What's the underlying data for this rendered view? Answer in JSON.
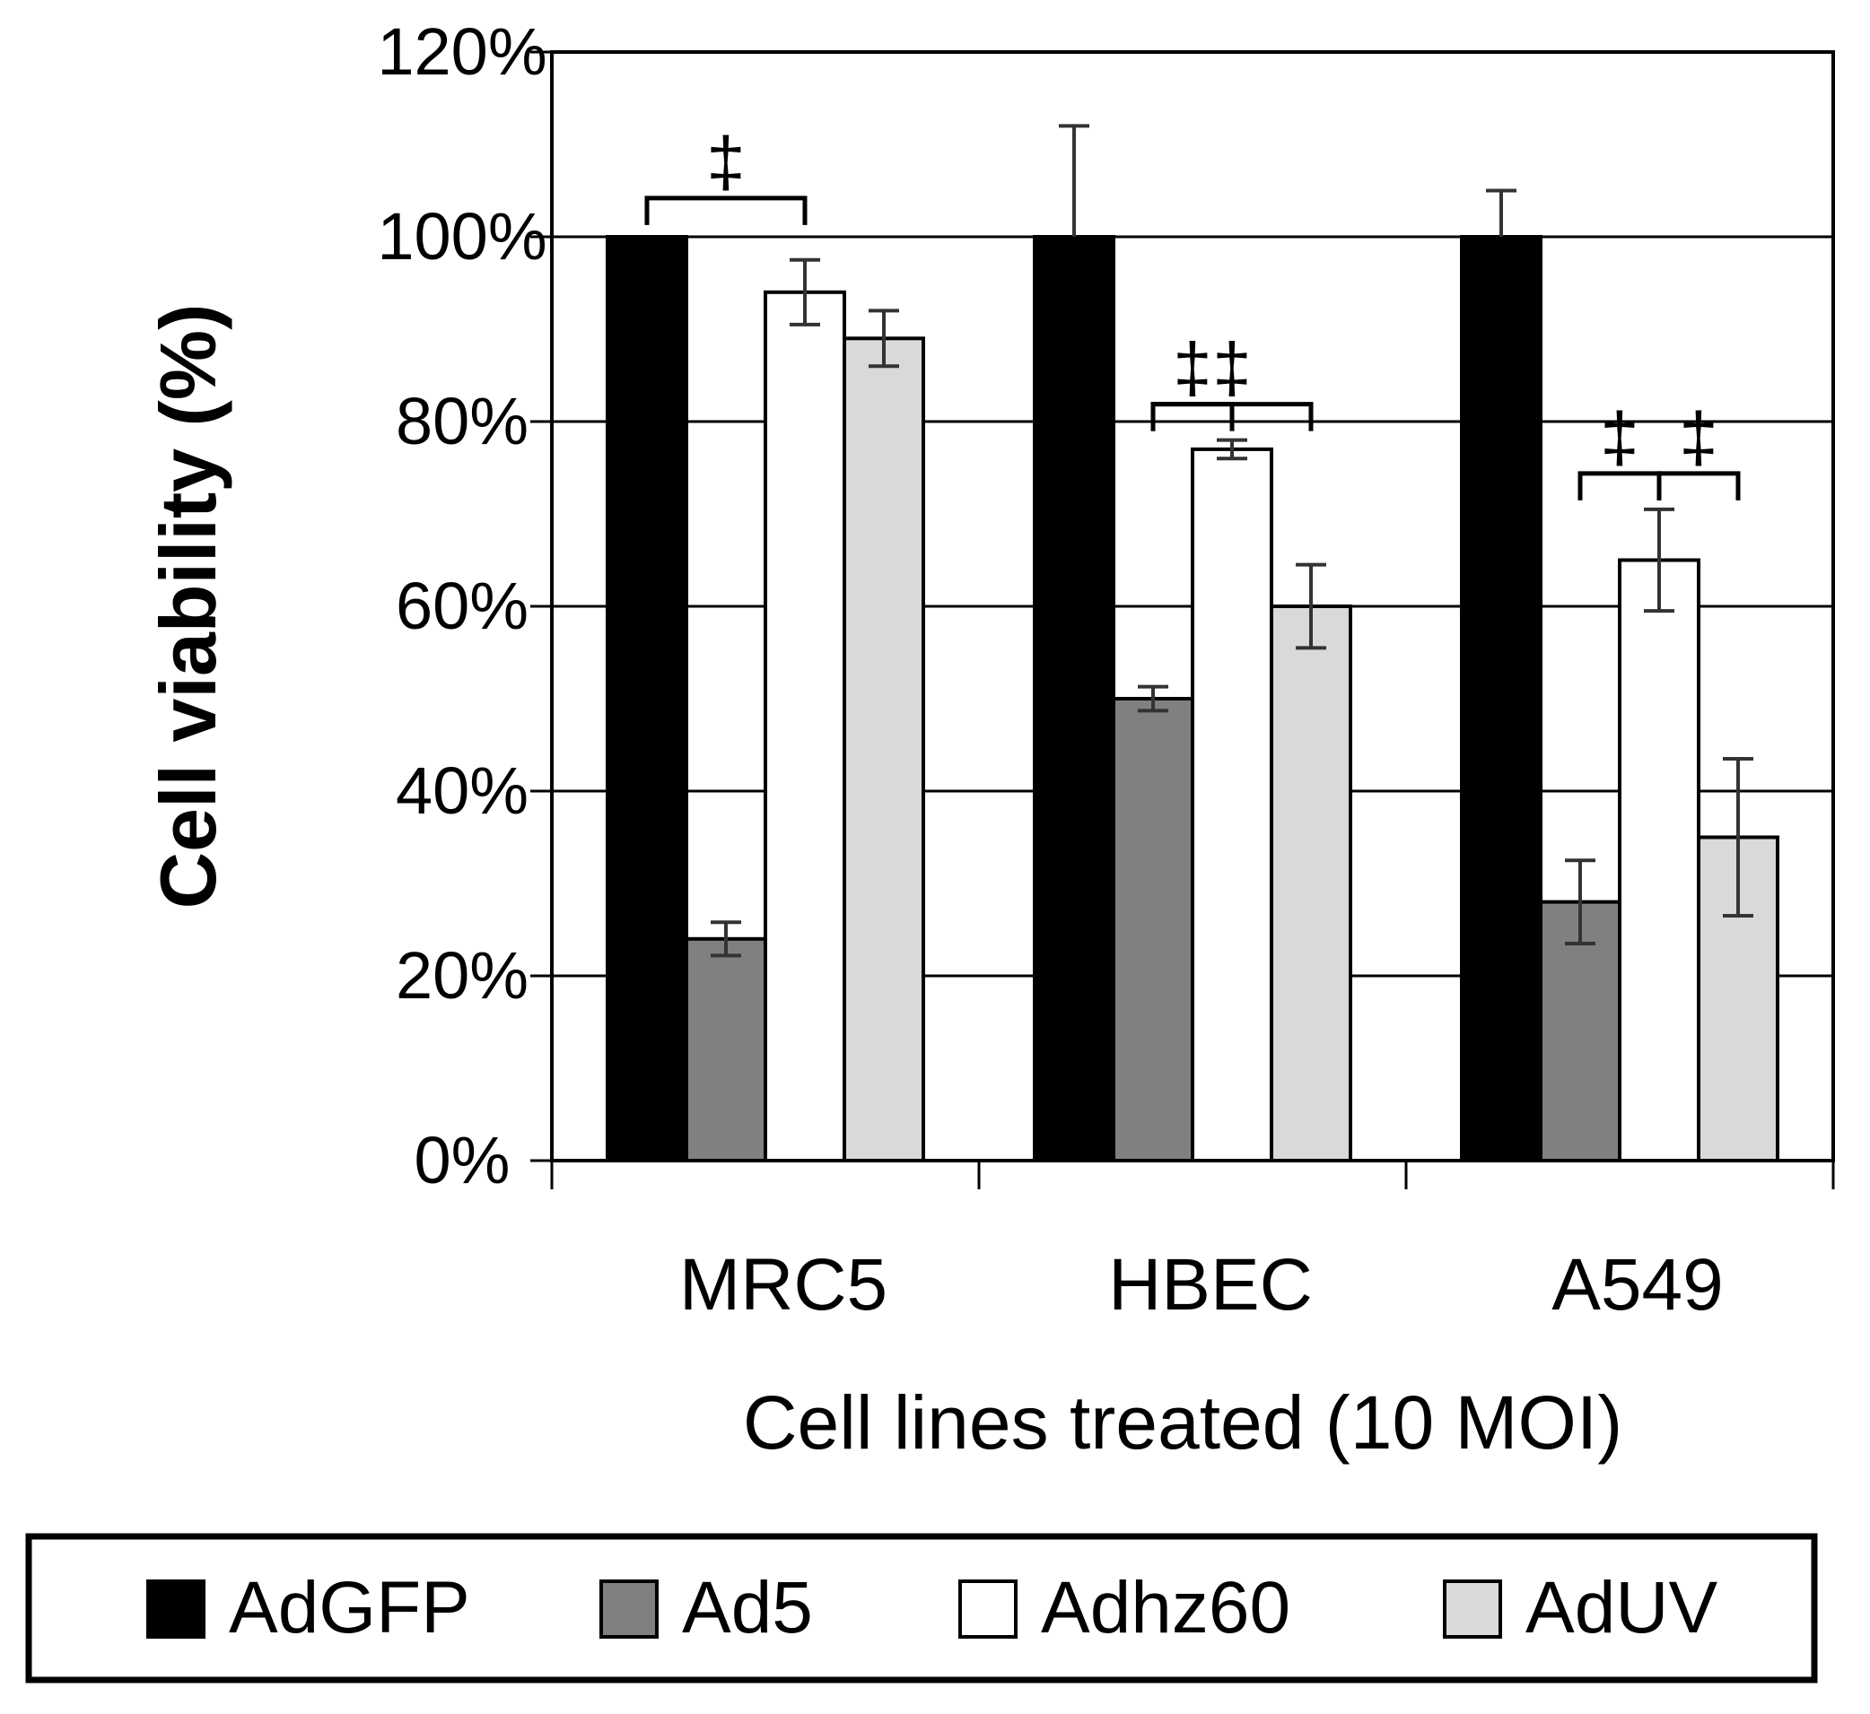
{
  "chart_data": {
    "type": "bar",
    "title": "",
    "xlabel": "Cell lines treated (10 MOI)",
    "ylabel": "Cell viability (%)",
    "ylim": [
      0,
      120
    ],
    "yticks": [
      "0%",
      "20%",
      "40%",
      "60%",
      "80%",
      "100%",
      "120%"
    ],
    "categories": [
      "MRC5",
      "HBEC",
      "A549"
    ],
    "grid": true,
    "legend_position": "bottom",
    "series": [
      {
        "name": "AdGFP",
        "color": "#000000",
        "values": [
          100,
          100,
          100
        ],
        "errors": [
          0.3,
          12,
          5
        ]
      },
      {
        "name": "Ad5",
        "color": "#808080",
        "values": [
          24,
          50,
          28
        ],
        "errors": [
          1.8,
          1.3,
          4.5
        ]
      },
      {
        "name": "Adhz60",
        "color": "#ffffff",
        "values": [
          94,
          77,
          65
        ],
        "errors": [
          3.5,
          1,
          5.5
        ]
      },
      {
        "name": "AdUV",
        "color": "#d9d9d9",
        "values": [
          89,
          60,
          35
        ],
        "errors": [
          3,
          4.5,
          8.5
        ]
      }
    ],
    "annotations": [
      {
        "text": "‡",
        "category": "MRC5",
        "between": [
          "AdGFP",
          "Adhz60"
        ]
      },
      {
        "text": "‡",
        "category": "HBEC",
        "between": [
          "Ad5",
          "AdUV"
        ]
      },
      {
        "text": "‡",
        "category": "HBEC",
        "between": [
          "Ad5",
          "Adhz60"
        ]
      },
      {
        "text": "‡",
        "category": "A549",
        "between": [
          "Ad5",
          "Adhz60"
        ]
      },
      {
        "text": "‡",
        "category": "A549",
        "between": [
          "Adhz60",
          "AdUV"
        ]
      }
    ]
  }
}
